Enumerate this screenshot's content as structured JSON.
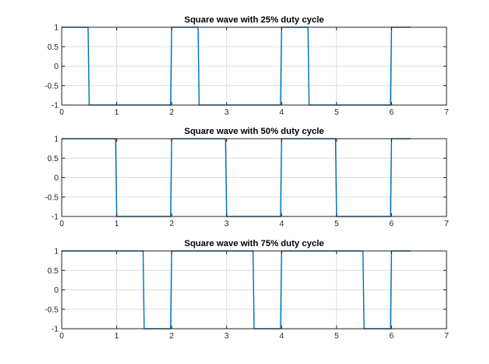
{
  "colors": {
    "series": "#0072BD",
    "axes": "#262626",
    "grid": "#dcdcdc"
  },
  "chart_data": [
    {
      "type": "line",
      "title": "Square wave with 25% duty cycle",
      "xlabel": "",
      "ylabel": "",
      "xlim": [
        0,
        7
      ],
      "ylim": [
        -1,
        1
      ],
      "xticks": [
        0,
        1,
        2,
        3,
        4,
        5,
        6,
        7
      ],
      "yticks": [
        -1,
        -0.5,
        0,
        0.5,
        1
      ],
      "xtick_labels": [
        "0",
        "1",
        "2",
        "3",
        "4",
        "5",
        "6",
        "7"
      ],
      "ytick_labels": [
        "-1",
        "-0.5",
        "0",
        "0.5",
        "1"
      ],
      "grid": true,
      "series": [
        {
          "x": [
            0,
            0.48,
            0.5,
            1.98,
            2.0,
            2.48,
            2.5,
            3.98,
            4.0,
            4.48,
            4.5,
            5.98,
            6.0,
            6.35
          ],
          "y": [
            1,
            1,
            -1,
            -1,
            1,
            1,
            -1,
            -1,
            1,
            1,
            -1,
            -1,
            1,
            1
          ]
        }
      ]
    },
    {
      "type": "line",
      "title": "Square wave with 50% duty cycle",
      "xlabel": "",
      "ylabel": "",
      "xlim": [
        0,
        7
      ],
      "ylim": [
        -1,
        1
      ],
      "xticks": [
        0,
        1,
        2,
        3,
        4,
        5,
        6,
        7
      ],
      "yticks": [
        -1,
        -0.5,
        0,
        0.5,
        1
      ],
      "xtick_labels": [
        "0",
        "1",
        "2",
        "3",
        "4",
        "5",
        "6",
        "7"
      ],
      "ytick_labels": [
        "-1",
        "-0.5",
        "0",
        "0.5",
        "1"
      ],
      "grid": true,
      "series": [
        {
          "x": [
            0,
            0.98,
            1.0,
            1.98,
            2.0,
            2.98,
            3.0,
            3.98,
            4.0,
            4.98,
            5.0,
            5.98,
            6.0,
            6.35
          ],
          "y": [
            1,
            1,
            -1,
            -1,
            1,
            1,
            -1,
            -1,
            1,
            1,
            -1,
            -1,
            1,
            1
          ]
        }
      ]
    },
    {
      "type": "line",
      "title": "Square wave with 75% duty cycle",
      "xlabel": "",
      "ylabel": "",
      "xlim": [
        0,
        7
      ],
      "ylim": [
        -1,
        1
      ],
      "xticks": [
        0,
        1,
        2,
        3,
        4,
        5,
        6,
        7
      ],
      "yticks": [
        -1,
        -0.5,
        0,
        0.5,
        1
      ],
      "xtick_labels": [
        "0",
        "1",
        "2",
        "3",
        "4",
        "5",
        "6",
        "7"
      ],
      "ytick_labels": [
        "-1",
        "-0.5",
        "0",
        "0.5",
        "1"
      ],
      "grid": true,
      "series": [
        {
          "x": [
            0,
            1.48,
            1.5,
            1.98,
            2.0,
            3.48,
            3.5,
            3.98,
            4.0,
            5.48,
            5.5,
            5.98,
            6.0,
            6.35
          ],
          "y": [
            1,
            1,
            -1,
            -1,
            1,
            1,
            -1,
            -1,
            1,
            1,
            -1,
            -1,
            1,
            1
          ]
        }
      ]
    }
  ]
}
